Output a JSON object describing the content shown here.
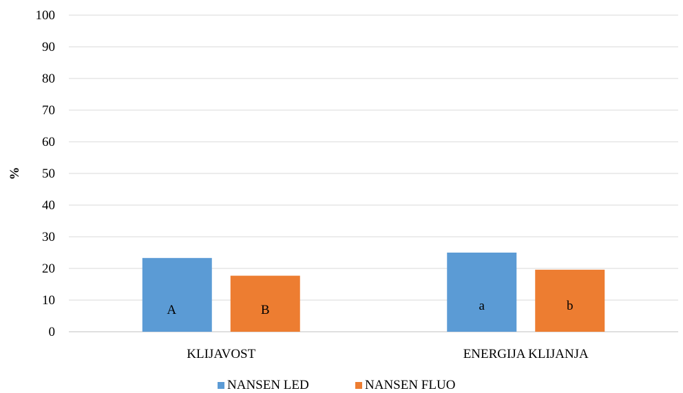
{
  "chart_data": {
    "type": "bar",
    "title": "",
    "xlabel": "",
    "ylabel": "%",
    "ylim": [
      0,
      100
    ],
    "yticks": [
      0,
      10,
      20,
      30,
      40,
      50,
      60,
      70,
      80,
      90,
      100
    ],
    "grid": true,
    "legend_position": "bottom",
    "categories": [
      "KLIJAVOST",
      "ENERGIJA KLIJANJA"
    ],
    "series": [
      {
        "name": "NANSEN LED",
        "color": "#5b9bd5",
        "values": [
          23.3,
          25.0
        ],
        "labels": [
          "A",
          "a"
        ]
      },
      {
        "name": "NANSEN FLUO",
        "color": "#ed7d31",
        "values": [
          17.7,
          19.6
        ],
        "labels": [
          "B",
          "b"
        ]
      }
    ]
  }
}
